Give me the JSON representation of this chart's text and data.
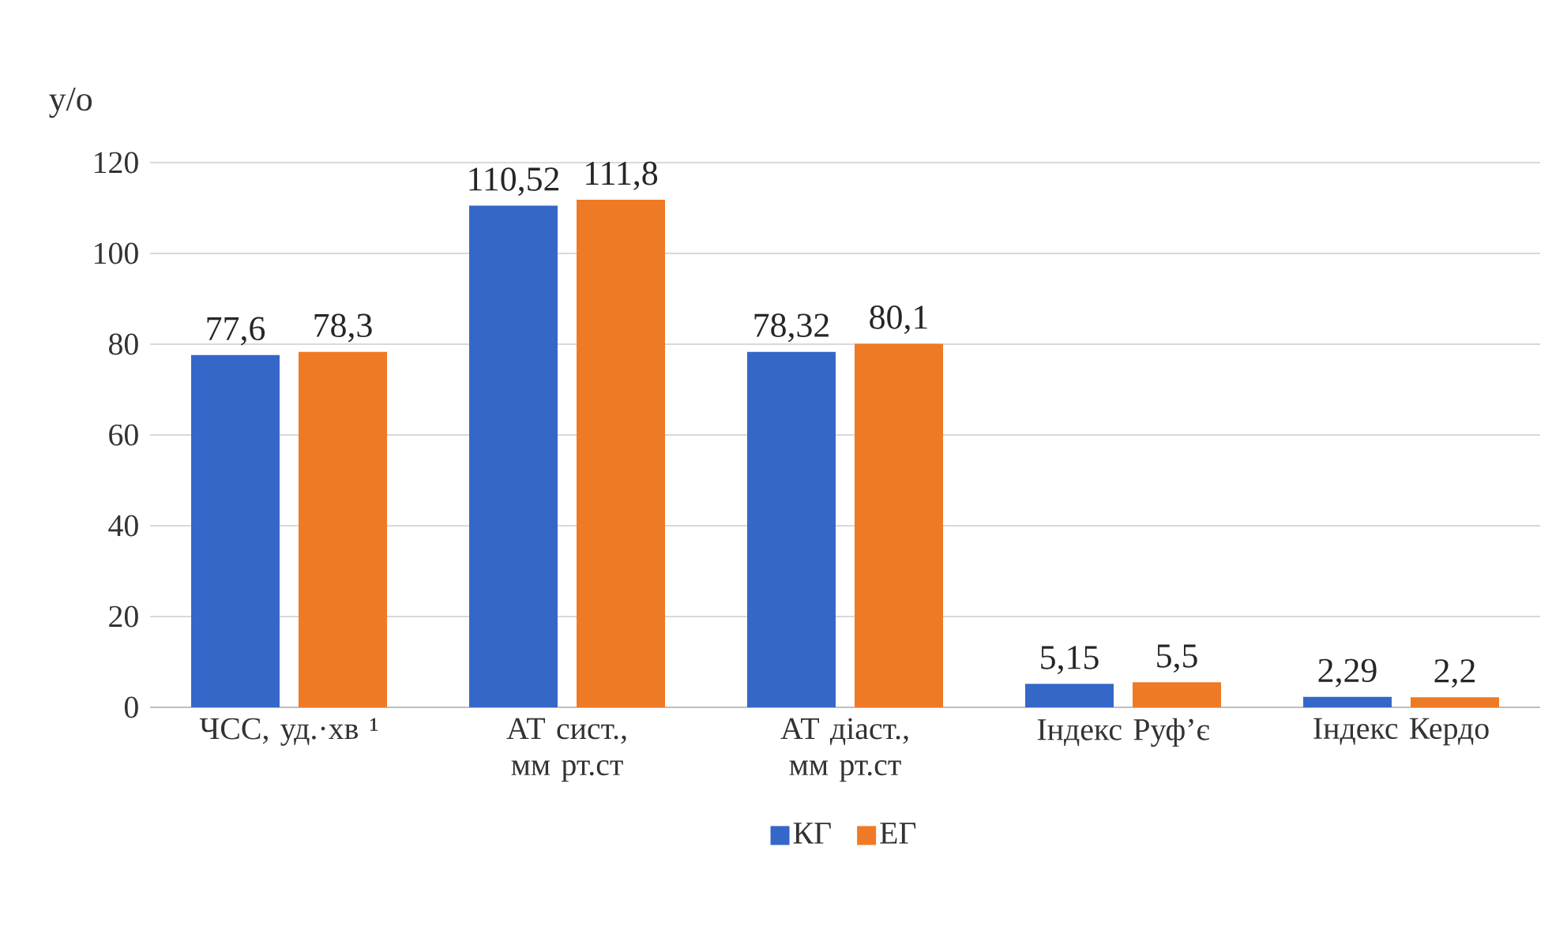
{
  "chart_data": {
    "type": "bar",
    "ylabel": "y/o",
    "categories": [
      "ЧСС, уд.·хв ¹",
      "АТ  сист.,  мм рт.ст",
      "АТ діаст., мм рт.ст",
      "Індекс Руф’є",
      "Індекс Кердо"
    ],
    "series": [
      {
        "name": "КГ",
        "color": "#3567c8",
        "values": [
          77.6,
          110.52,
          78.32,
          5.15,
          2.29
        ],
        "value_labels": [
          "77,6",
          "110,52",
          "78,32",
          "5,15",
          "2,29"
        ]
      },
      {
        "name": "ЕГ",
        "color": "#ee7a25",
        "values": [
          78.3,
          111.8,
          80.1,
          5.5,
          2.2
        ],
        "value_labels": [
          "78,3",
          "111,8",
          "80,1",
          "5,5",
          "2,2"
        ]
      }
    ],
    "ylim": [
      0,
      120
    ],
    "yticks": [
      0,
      20,
      40,
      60,
      80,
      100,
      120
    ],
    "grid": "y",
    "legend": "bottom"
  }
}
